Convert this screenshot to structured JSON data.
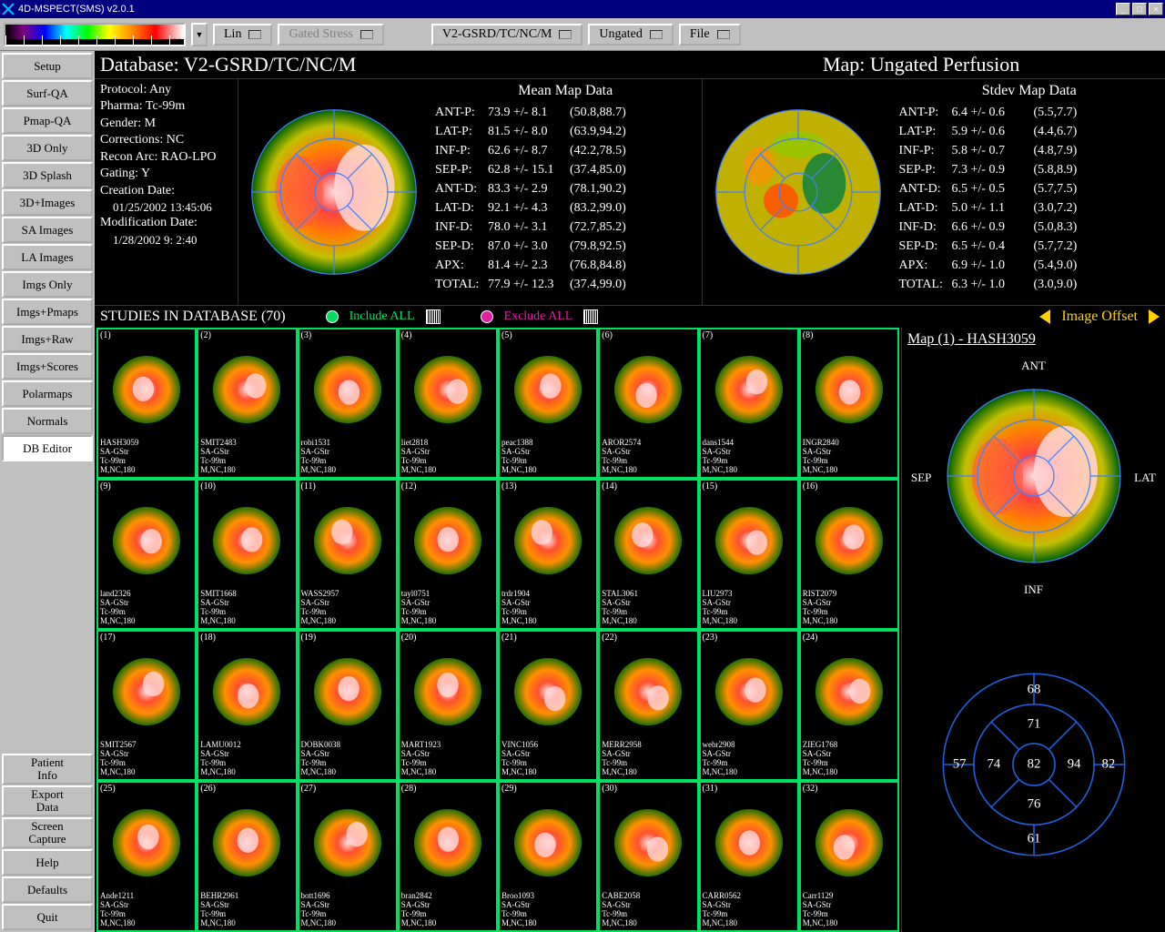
{
  "window": {
    "title": "4D-MSPECT(SMS) v2.0.1"
  },
  "colorbar": {
    "min": "0",
    "max": "100",
    "gradient": [
      "#000000",
      "#800080",
      "#0000ff",
      "#00ffff",
      "#00ff00",
      "#ffff00",
      "#ff8000",
      "#ff0000",
      "#ffffff"
    ]
  },
  "toolbar": {
    "lin": "Lin",
    "gated_stress": "Gated Stress",
    "db": "V2-GSRD/TC/NC/M",
    "gating": "Ungated",
    "file": "File"
  },
  "sidebar_top": [
    "Setup",
    "Surf-QA",
    "Pmap-QA",
    "3D Only",
    "3D Splash",
    "3D+Images",
    "SA Images",
    "LA Images",
    "Imgs Only",
    "Imgs+Pmaps",
    "Imgs+Raw",
    "Imgs+Scores",
    "Polarmaps",
    "Normals",
    "DB Editor"
  ],
  "sidebar_bottom": [
    "Patient\nInfo",
    "Export\nData",
    "Screen\nCapture",
    "Help",
    "Defaults",
    "Quit"
  ],
  "sidebar_active": "DB Editor",
  "header": {
    "db": "Database: V2-GSRD/TC/NC/M",
    "map": "Map: Ungated Perfusion"
  },
  "protocol": {
    "protocol": "Protocol: Any",
    "pharma": "Pharma: Tc-99m",
    "gender": "Gender: M",
    "corrections": "Corrections: NC",
    "recon": "Recon Arc: RAO-LPO",
    "gating": "Gating: Y",
    "creation_lbl": "Creation Date:",
    "creation": "01/25/2002 13:45:06",
    "mod_lbl": "Modification Date:",
    "mod": "1/28/2002  9: 2:40"
  },
  "mean_map": {
    "title": "Mean Map Data",
    "rows": [
      {
        "l": "ANT-P:",
        "v": "73.9 +/- 8.1",
        "r": "(50.8,88.7)"
      },
      {
        "l": "LAT-P:",
        "v": "81.5 +/- 8.0",
        "r": "(63.9,94.2)"
      },
      {
        "l": "INF-P:",
        "v": "62.6 +/- 8.7",
        "r": "(42.2,78.5)"
      },
      {
        "l": "SEP-P:",
        "v": "62.8 +/- 15.1",
        "r": "(37.4,85.0)"
      },
      {
        "l": "ANT-D:",
        "v": "83.3 +/- 2.9",
        "r": "(78.1,90.2)"
      },
      {
        "l": "LAT-D:",
        "v": "92.1 +/- 4.3",
        "r": "(83.2,99.0)"
      },
      {
        "l": "INF-D:",
        "v": "78.0 +/- 3.1",
        "r": "(72.7,85.2)"
      },
      {
        "l": "SEP-D:",
        "v": "87.0 +/- 3.0",
        "r": "(79.8,92.5)"
      },
      {
        "l": "APX:",
        "v": "81.4 +/- 2.3",
        "r": "(76.8,84.8)"
      },
      {
        "l": "TOTAL:",
        "v": "77.9 +/- 12.3",
        "r": "(37.4,99.0)"
      }
    ]
  },
  "stdev_map": {
    "title": "Stdev Map Data",
    "rows": [
      {
        "l": "ANT-P:",
        "v": "6.4 +/- 0.6",
        "r": "(5.5,7.7)"
      },
      {
        "l": "LAT-P:",
        "v": "5.9 +/- 0.6",
        "r": "(4.4,6.7)"
      },
      {
        "l": "INF-P:",
        "v": "5.8 +/- 0.7",
        "r": "(4.8,7.9)"
      },
      {
        "l": "SEP-P:",
        "v": "7.3 +/- 0.9",
        "r": "(5.8,8.9)"
      },
      {
        "l": "ANT-D:",
        "v": "6.5 +/- 0.5",
        "r": "(5.7,7.5)"
      },
      {
        "l": "LAT-D:",
        "v": "5.0 +/- 1.1",
        "r": "(3.0,7.2)"
      },
      {
        "l": "INF-D:",
        "v": "6.6 +/- 0.9",
        "r": "(5.0,8.3)"
      },
      {
        "l": "SEP-D:",
        "v": "6.5 +/- 0.4",
        "r": "(5.7,7.2)"
      },
      {
        "l": "APX:",
        "v": "6.9 +/- 1.0",
        "r": "(5.4,9.0)"
      },
      {
        "l": "TOTAL:",
        "v": "6.3 +/- 1.0",
        "r": "(3.0,9.0)"
      }
    ]
  },
  "studies": {
    "title": "STUDIES IN DATABASE (70)",
    "include": "Include ALL",
    "exclude": "Exclude ALL",
    "offset": "Image Offset",
    "items": [
      {
        "n": "(1)",
        "id": "HASH3059",
        "a": "SA-GStr",
        "b": "Tc-99m",
        "c": "M,NC,180"
      },
      {
        "n": "(2)",
        "id": "SMIT2483",
        "a": "SA-GStr",
        "b": "Tc-99m",
        "c": "M,NC,180"
      },
      {
        "n": "(3)",
        "id": "robi1531",
        "a": "SA-GStr",
        "b": "Tc-99m",
        "c": "M,NC,180"
      },
      {
        "n": "(4)",
        "id": "liet2818",
        "a": "SA-GStr",
        "b": "Tc-99m",
        "c": "M,NC,180"
      },
      {
        "n": "(5)",
        "id": "peac1388",
        "a": "SA-GStr",
        "b": "Tc-99m",
        "c": "M,NC,180"
      },
      {
        "n": "(6)",
        "id": "AROR2574",
        "a": "SA-GStr",
        "b": "Tc-99m",
        "c": "M,NC,180"
      },
      {
        "n": "(7)",
        "id": "dans1544",
        "a": "SA-GStr",
        "b": "Tc-99m",
        "c": "M,NC,180"
      },
      {
        "n": "(8)",
        "id": "INGR2840",
        "a": "SA-GStr",
        "b": "Tc-99m",
        "c": "M,NC,180"
      },
      {
        "n": "(9)",
        "id": "land2326",
        "a": "SA-GStr",
        "b": "Tc-99m",
        "c": "M,NC,180"
      },
      {
        "n": "(10)",
        "id": "SMIT1668",
        "a": "SA-GStr",
        "b": "Tc-99m",
        "c": "M,NC,180"
      },
      {
        "n": "(11)",
        "id": "WASS2957",
        "a": "SA-GStr",
        "b": "Tc-99m",
        "c": "M,NC,180"
      },
      {
        "n": "(12)",
        "id": "tayl0751",
        "a": "SA-GStr",
        "b": "Tc-99m",
        "c": "M,NC,180"
      },
      {
        "n": "(13)",
        "id": "trdr1904",
        "a": "SA-GStr",
        "b": "Tc-99m",
        "c": "M,NC,180"
      },
      {
        "n": "(14)",
        "id": "STAL3061",
        "a": "SA-GStr",
        "b": "Tc-99m",
        "c": "M,NC,180"
      },
      {
        "n": "(15)",
        "id": "LIU2973",
        "a": "SA-GStr",
        "b": "Tc-99m",
        "c": "M,NC,180"
      },
      {
        "n": "(16)",
        "id": "RIST2079",
        "a": "SA-GStr",
        "b": "Tc-99m",
        "c": "M,NC,180"
      },
      {
        "n": "(17)",
        "id": "SMIT2567",
        "a": "SA-GStr",
        "b": "Tc-99m",
        "c": "M,NC,180"
      },
      {
        "n": "(18)",
        "id": "LAMU0012",
        "a": "SA-GStr",
        "b": "Tc-99m",
        "c": "M,NC,180"
      },
      {
        "n": "(19)",
        "id": "DOBK0038",
        "a": "SA-GStr",
        "b": "Tc-99m",
        "c": "M,NC,180"
      },
      {
        "n": "(20)",
        "id": "MART1923",
        "a": "SA-GStr",
        "b": "Tc-99m",
        "c": "M,NC,180"
      },
      {
        "n": "(21)",
        "id": "VINC1056",
        "a": "SA-GStr",
        "b": "Tc-99m",
        "c": "M,NC,180"
      },
      {
        "n": "(22)",
        "id": "MERR2958",
        "a": "SA-GStr",
        "b": "Tc-99m",
        "c": "M,NC,180"
      },
      {
        "n": "(23)",
        "id": "webr2908",
        "a": "SA-GStr",
        "b": "Tc-99m",
        "c": "M,NC,180"
      },
      {
        "n": "(24)",
        "id": "ZIEG1768",
        "a": "SA-GStr",
        "b": "Tc-99m",
        "c": "M,NC,180"
      },
      {
        "n": "(25)",
        "id": "Ande1211",
        "a": "SA-GStr",
        "b": "Tc-99m",
        "c": "M,NC,180"
      },
      {
        "n": "(26)",
        "id": "BEHR2961",
        "a": "SA-GStr",
        "b": "Tc-99m",
        "c": "M,NC,180"
      },
      {
        "n": "(27)",
        "id": "bott1696",
        "a": "SA-GStr",
        "b": "Tc-99m",
        "c": "M,NC,180"
      },
      {
        "n": "(28)",
        "id": "bran2842",
        "a": "SA-GStr",
        "b": "Tc-99m",
        "c": "M,NC,180"
      },
      {
        "n": "(29)",
        "id": "Broo1093",
        "a": "SA-GStr",
        "b": "Tc-99m",
        "c": "M,NC,180"
      },
      {
        "n": "(30)",
        "id": "CABE2058",
        "a": "SA-GStr",
        "b": "Tc-99m",
        "c": "M,NC,180"
      },
      {
        "n": "(31)",
        "id": "CARR0562",
        "a": "SA-GStr",
        "b": "Tc-99m",
        "c": "M,NC,180"
      },
      {
        "n": "(32)",
        "id": "Carr1129",
        "a": "SA-GStr",
        "b": "Tc-99m",
        "c": "M,NC,180"
      }
    ]
  },
  "right": {
    "title": "Map (1) - HASH3059",
    "orient": {
      "ant": "ANT",
      "sep": "SEP",
      "lat": "LAT",
      "inf": "INF"
    },
    "scores": {
      "ant_p": "68",
      "lat_p": "82",
      "inf_p": "61",
      "sep_p": "57",
      "ant_d": "71",
      "lat_d": "94",
      "inf_d": "76",
      "sep_d": "74",
      "apx": "82"
    },
    "score_color": "#2060e0"
  },
  "polar_palette": {
    "outer": "#004400",
    "mid": "#ff8000",
    "inner": "#ff3030",
    "center": "#ffd0d0",
    "grid": "#4080ff"
  },
  "stdev_palette": {
    "base": "#c0b000",
    "spots": [
      "#00a000",
      "#ff4000",
      "#0060ff"
    ]
  }
}
